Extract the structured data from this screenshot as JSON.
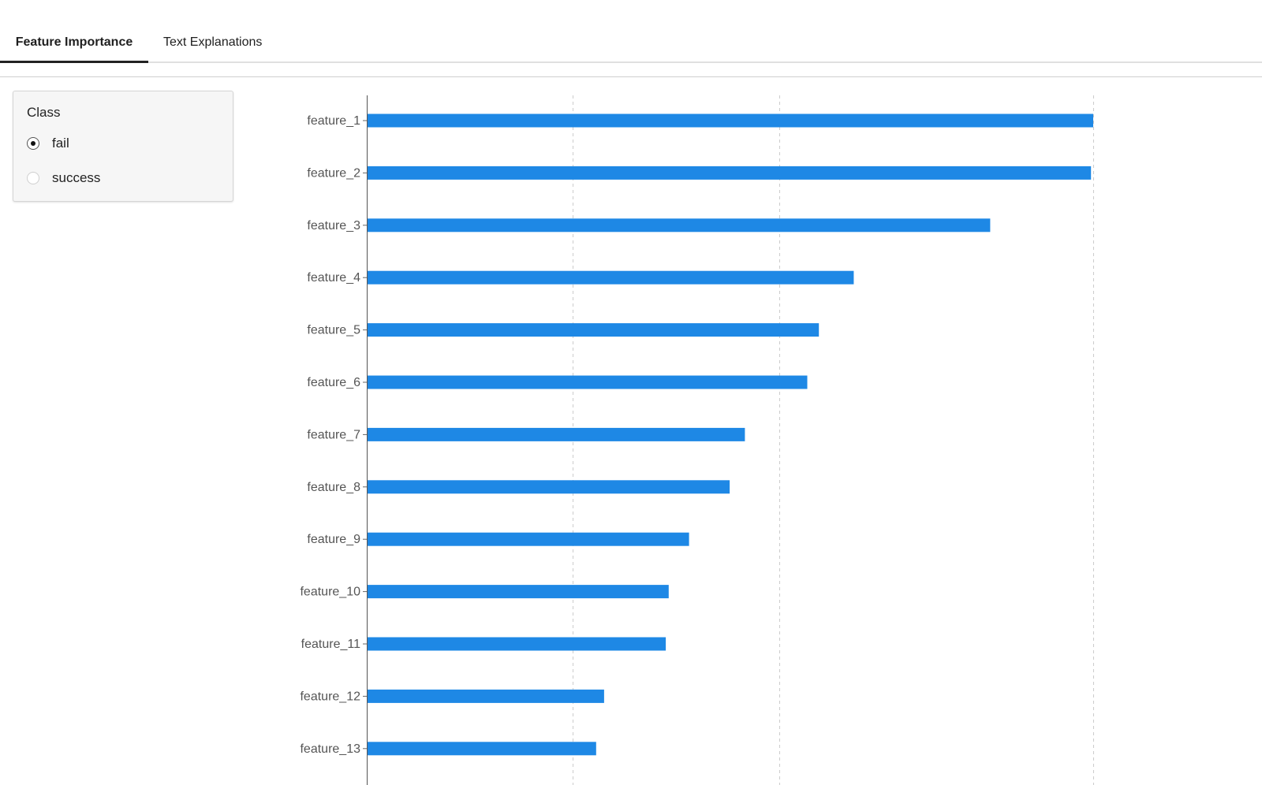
{
  "tabs": [
    {
      "label": "Feature Importance",
      "active": true
    },
    {
      "label": "Text Explanations",
      "active": false
    }
  ],
  "class_filter": {
    "title": "Class",
    "options": [
      {
        "label": "fail",
        "selected": true
      },
      {
        "label": "success",
        "selected": false
      }
    ]
  },
  "chart_data": {
    "type": "bar",
    "orientation": "horizontal",
    "categories": [
      "feature_1",
      "feature_2",
      "feature_3",
      "feature_4",
      "feature_5",
      "feature_6",
      "feature_7",
      "feature_8",
      "feature_9",
      "feature_10",
      "feature_11",
      "feature_12",
      "feature_13"
    ],
    "values": [
      1.0,
      0.997,
      0.858,
      0.67,
      0.622,
      0.606,
      0.52,
      0.499,
      0.443,
      0.415,
      0.411,
      0.326,
      0.315
    ],
    "xlim": [
      0,
      1.0
    ],
    "gridlines_x": [
      0.283,
      0.567,
      1.0
    ],
    "grid": true,
    "bar_color": "#1e88e5"
  }
}
